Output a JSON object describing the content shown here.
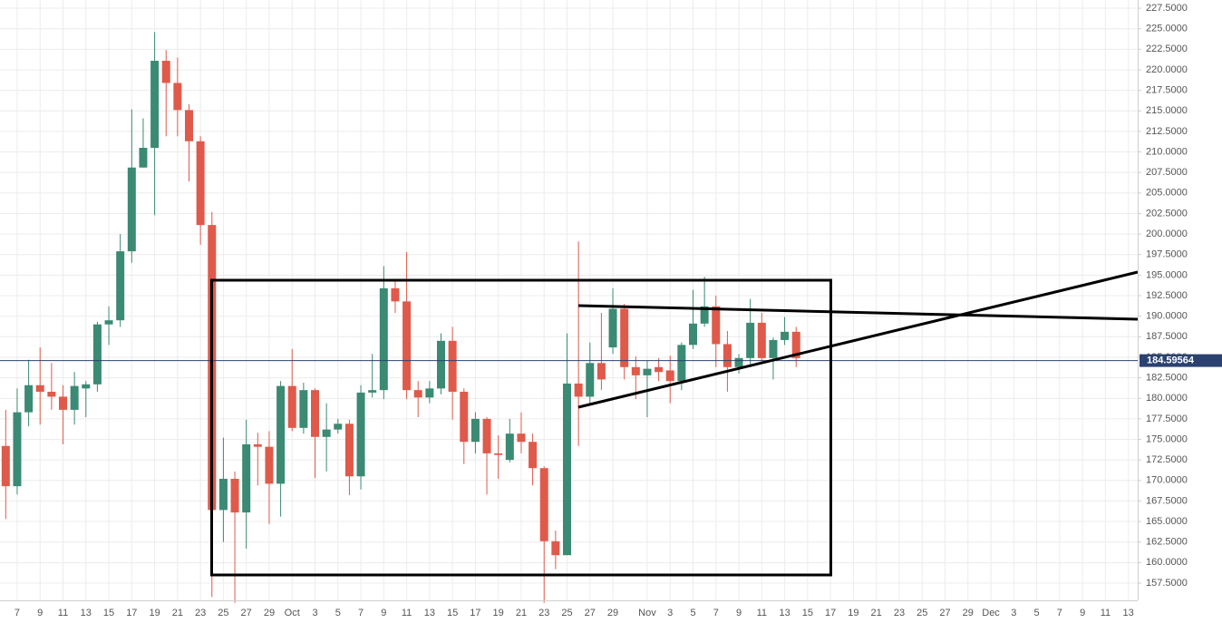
{
  "chart_data": {
    "type": "candlestick",
    "up_color": "#3b8a73",
    "down_color": "#df5a4a",
    "last_price_color": "#2b4270",
    "grid": true,
    "ylim": [
      155.4,
      228.5
    ],
    "yticks": [
      {
        "value": 157.5,
        "label": "157.5000"
      },
      {
        "value": 160,
        "label": "160.0000"
      },
      {
        "value": 162.5,
        "label": "162.5000"
      },
      {
        "value": 165,
        "label": "165.0000"
      },
      {
        "value": 167.5,
        "label": "167.5000"
      },
      {
        "value": 170,
        "label": "170.0000"
      },
      {
        "value": 172.5,
        "label": "172.5000"
      },
      {
        "value": 175,
        "label": "175.0000"
      },
      {
        "value": 177.5,
        "label": "177.5000"
      },
      {
        "value": 180,
        "label": "180.0000"
      },
      {
        "value": 182.5,
        "label": "182.5000"
      },
      {
        "value": 185,
        "label": "185.0000"
      },
      {
        "value": 187.5,
        "label": "187.5000"
      },
      {
        "value": 190,
        "label": "190.0000"
      },
      {
        "value": 192.5,
        "label": "192.5000"
      },
      {
        "value": 195,
        "label": "195.0000"
      },
      {
        "value": 197.5,
        "label": "197.5000"
      },
      {
        "value": 200,
        "label": "200.0000"
      },
      {
        "value": 202.5,
        "label": "202.5000"
      },
      {
        "value": 205,
        "label": "205.0000"
      },
      {
        "value": 207.5,
        "label": "207.5000"
      },
      {
        "value": 210,
        "label": "210.0000"
      },
      {
        "value": 212.5,
        "label": "212.5000"
      },
      {
        "value": 215,
        "label": "215.0000"
      },
      {
        "value": 217.5,
        "label": "217.5000"
      },
      {
        "value": 220,
        "label": "220.0000"
      },
      {
        "value": 222.5,
        "label": "222.5000"
      },
      {
        "value": 225,
        "label": "225.0000"
      },
      {
        "value": 227.5,
        "label": "227.5000"
      }
    ],
    "last_price": 184.59564,
    "categories": [
      null,
      "7",
      null,
      "9",
      null,
      "11",
      null,
      "13",
      null,
      "15",
      null,
      "17",
      null,
      "19",
      null,
      "21",
      null,
      "23",
      null,
      "25",
      null,
      "27",
      null,
      "29",
      null,
      "Oct",
      null,
      "3",
      null,
      "5",
      null,
      "7",
      null,
      "9",
      null,
      "11",
      null,
      "13",
      null,
      "15",
      null,
      "17",
      null,
      "19",
      null,
      "21",
      null,
      "23",
      null,
      "25",
      null,
      "27",
      null,
      "29",
      null,
      null,
      "Nov",
      null,
      "3",
      null,
      "5",
      null,
      "7",
      null,
      "9",
      null,
      "11",
      null,
      "13",
      null,
      "15",
      null,
      "17",
      null,
      "19",
      null,
      "21",
      null,
      "23",
      null,
      "25",
      null,
      "27",
      null,
      "29",
      null,
      "Dec",
      null,
      "3",
      null,
      "5",
      null,
      "7",
      null,
      "9",
      null,
      "11",
      null,
      "13"
    ],
    "open": [
      174.2,
      169.3,
      178.3,
      181.6,
      180.8,
      180.2,
      178.6,
      181.2,
      181.7,
      189.0,
      189.5,
      197.9,
      208.1,
      210.5,
      221.1,
      218.4,
      215.1,
      211.3,
      201.1,
      166.4,
      170.2,
      166.1,
      174.4,
      174.1,
      169.6,
      181.5,
      176.4,
      181.0,
      175.3,
      176.2,
      176.9,
      170.5,
      180.7,
      181.0,
      193.4,
      191.8,
      181.0,
      180.1,
      181.2,
      187.0,
      180.8,
      174.7,
      177.5,
      173.3,
      172.5,
      175.7,
      174.7,
      171.5,
      162.6,
      160.9,
      181.8,
      180.2,
      184.3,
      186.2,
      190.9,
      183.8,
      182.8,
      183.8,
      183.4,
      182.1,
      186.5,
      189.1,
      191.2,
      186.6,
      183.8,
      184.9,
      189.2,
      184.9,
      187.1,
      188.1,
      null,
      null,
      null,
      null,
      null,
      null,
      null,
      null,
      null,
      null,
      null,
      null,
      null,
      null,
      null,
      null,
      null,
      null,
      null,
      null,
      null,
      null,
      null,
      null,
      null,
      null,
      null,
      null,
      null
    ],
    "high": [
      178.6,
      181.2,
      184.7,
      186.2,
      184.3,
      181.6,
      183.2,
      182.1,
      189.3,
      191.2,
      200.0,
      215.2,
      214.1,
      224.6,
      222.4,
      221.5,
      215.8,
      211.9,
      202.7,
      175.2,
      171.1,
      177.4,
      175.8,
      176.0,
      182.1,
      186.0,
      181.9,
      181.2,
      179.4,
      177.5,
      177.4,
      181.6,
      185.4,
      196.1,
      194.3,
      197.8,
      182.1,
      182.1,
      187.9,
      188.7,
      181.2,
      178.3,
      177.7,
      175.5,
      177.5,
      178.3,
      175.7,
      171.7,
      163.9,
      187.9,
      199.1,
      186.8,
      190.4,
      193.4,
      191.5,
      185.1,
      184.6,
      184.9,
      185.2,
      186.8,
      193.2,
      194.8,
      192.5,
      188.2,
      185.4,
      192.1,
      190.4,
      187.4,
      189.9,
      188.7,
      null,
      null,
      null,
      null,
      null,
      null,
      null,
      null,
      null,
      null,
      null,
      null,
      null,
      null,
      null,
      null,
      null,
      null,
      null,
      null,
      null,
      null,
      null,
      null,
      null,
      null,
      null,
      null,
      null
    ],
    "low": [
      165.3,
      168.3,
      176.6,
      176.8,
      178.6,
      174.4,
      176.8,
      177.7,
      180.8,
      186.5,
      188.7,
      196.5,
      208.1,
      202.3,
      211.9,
      211.9,
      206.4,
      198.7,
      155.8,
      162.5,
      155.1,
      161.7,
      169.4,
      164.7,
      165.6,
      176.0,
      175.7,
      170.3,
      171.1,
      175.7,
      168.2,
      168.9,
      180.1,
      179.9,
      190.4,
      179.9,
      177.7,
      179.4,
      180.5,
      177.4,
      172.0,
      173.3,
      168.3,
      170.2,
      172.2,
      173.3,
      169.4,
      155.1,
      159.2,
      160.9,
      174.2,
      179.4,
      181.0,
      185.4,
      182.3,
      179.9,
      177.7,
      182.1,
      179.4,
      181.0,
      186.0,
      188.7,
      183.8,
      180.8,
      183.0,
      183.8,
      184.3,
      182.3,
      186.5,
      183.8,
      null,
      null,
      null,
      null,
      null,
      null,
      null,
      null,
      null,
      null,
      null,
      null,
      null,
      null,
      null,
      null,
      null,
      null,
      null,
      null,
      null,
      null,
      null,
      null,
      null,
      null,
      null,
      null,
      null
    ],
    "close": [
      169.3,
      178.3,
      181.6,
      180.8,
      180.2,
      178.6,
      181.5,
      181.7,
      189.0,
      189.5,
      197.9,
      208.1,
      210.5,
      221.1,
      218.4,
      215.1,
      211.3,
      201.1,
      166.4,
      170.2,
      166.1,
      174.4,
      174.1,
      169.6,
      181.5,
      176.4,
      181.0,
      175.3,
      176.2,
      176.9,
      170.5,
      180.7,
      181.0,
      193.4,
      191.8,
      181.0,
      180.1,
      181.2,
      187.0,
      180.8,
      174.7,
      177.5,
      173.3,
      173.1,
      175.7,
      174.7,
      171.5,
      162.6,
      160.9,
      181.8,
      180.2,
      184.3,
      182.3,
      190.9,
      183.8,
      182.8,
      183.6,
      183.2,
      182.1,
      186.5,
      189.1,
      191.2,
      186.6,
      183.8,
      184.9,
      189.2,
      184.9,
      187.1,
      188.1,
      184.9,
      null,
      null,
      null,
      null,
      null,
      null,
      null,
      null,
      null,
      null,
      null,
      null,
      null,
      null,
      null,
      null,
      null,
      null,
      null,
      null,
      null,
      null,
      null,
      null,
      null,
      null,
      null,
      null,
      null
    ]
  }
}
